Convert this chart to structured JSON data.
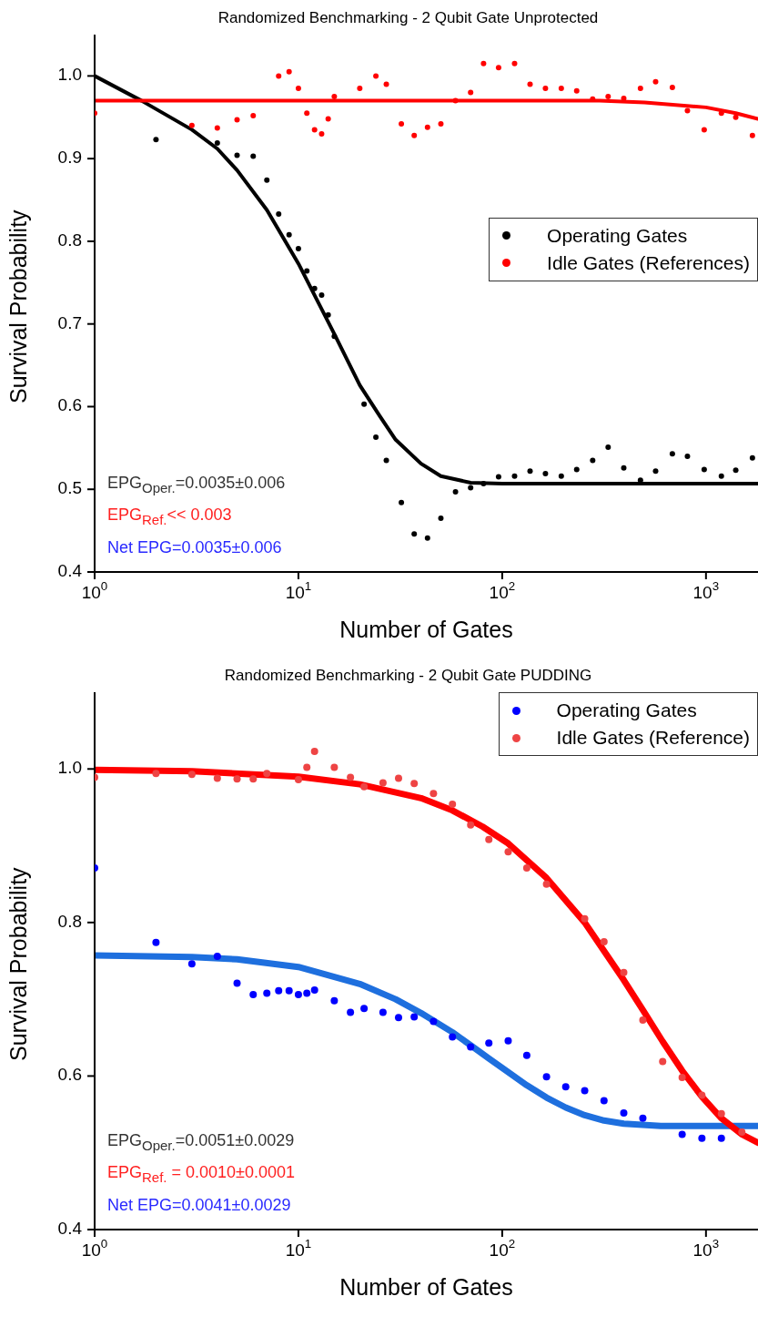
{
  "chart_data": [
    {
      "type": "scatter",
      "title": "Randomized Benchmarking - 2 Qubit Gate Unprotected",
      "xlabel": "Number of Gates",
      "ylabel": "Survival Probability",
      "log": "x",
      "marker": "circle",
      "legend": "right",
      "xlim": [
        1,
        1800
      ],
      "xticks": [
        {
          "value": 1,
          "label": "10$^{0}$"
        },
        {
          "value": 10,
          "label": "10$^{1}$"
        },
        {
          "value": 100,
          "label": "10$^{2}$"
        },
        {
          "value": 1000,
          "label": "10$^{3}$"
        }
      ],
      "ylim": [
        0.4,
        1.05
      ],
      "yticks": [
        0.4,
        0.5,
        0.6,
        0.7,
        0.8,
        0.9,
        {
          "value": 1,
          "label": "1.0"
        }
      ],
      "annotations": [
        "EPG$_{Oper.}$=0.0035±0.006",
        "EPG$_{Ref.}$<< 0.003",
        "Net EPG=0.0035±0.006"
      ],
      "series": [
        {
          "type": "line",
          "marker": "none",
          "color": "#000000",
          "x": [
            1,
            1.7,
            3,
            4,
            5,
            7,
            10,
            15,
            20,
            25,
            30,
            40,
            50,
            70,
            100,
            200,
            500,
            1000,
            1800
          ],
          "values": [
            1.0,
            0.97,
            0.935,
            0.912,
            0.886,
            0.838,
            0.773,
            0.688,
            0.626,
            0.589,
            0.56,
            0.531,
            0.516,
            0.508,
            0.507,
            0.507,
            0.507,
            0.507,
            0.507
          ]
        },
        {
          "type": "line",
          "marker": "none",
          "color": "#ff0000",
          "x": [
            1,
            10,
            100,
            300,
            500,
            1000,
            1400,
            1800
          ],
          "values": [
            0.97,
            0.97,
            0.97,
            0.97,
            0.968,
            0.962,
            0.955,
            0.948
          ]
        },
        {
          "name": "Operating Gates",
          "color": "#000000",
          "x": [
            2,
            4,
            5,
            6,
            7,
            8,
            9,
            10,
            11,
            12,
            13,
            14,
            15,
            21,
            24,
            27,
            32,
            37,
            43,
            50,
            59,
            70,
            81,
            96,
            115,
            137,
            163,
            195,
            232,
            278,
            331,
            395,
            477,
            566,
            684,
            811,
            980,
            1190,
            1400,
            1690
          ],
          "values": [
            0.923,
            0.919,
            0.904,
            0.903,
            0.874,
            0.833,
            0.808,
            0.791,
            0.764,
            0.743,
            0.735,
            0.711,
            0.685,
            0.603,
            0.563,
            0.535,
            0.484,
            0.446,
            0.441,
            0.465,
            0.497,
            0.502,
            0.507,
            0.515,
            0.516,
            0.522,
            0.519,
            0.516,
            0.524,
            0.535,
            0.551,
            0.526,
            0.511,
            0.522,
            0.543,
            0.54,
            0.524,
            0.516,
            0.523,
            0.538
          ]
        },
        {
          "name": "Idle Gates (References)",
          "color": "#ff0000",
          "x": [
            1,
            3,
            4,
            5,
            6,
            8,
            9,
            10,
            11,
            12,
            13,
            14,
            15,
            20,
            24,
            27,
            32,
            37,
            43,
            50,
            59,
            70,
            81,
            96,
            115,
            137,
            163,
            195,
            232,
            278,
            331,
            395,
            477,
            566,
            684,
            811,
            980,
            1190,
            1400,
            1690
          ],
          "values": [
            0.955,
            0.94,
            0.937,
            0.947,
            0.952,
            1.0,
            1.005,
            0.985,
            0.955,
            0.935,
            0.93,
            0.948,
            0.975,
            0.985,
            1.0,
            0.99,
            0.942,
            0.928,
            0.938,
            0.942,
            0.97,
            0.98,
            1.015,
            1.01,
            1.015,
            0.99,
            0.985,
            0.985,
            0.982,
            0.972,
            0.975,
            0.973,
            0.985,
            0.993,
            0.986,
            0.958,
            0.935,
            0.955,
            0.95,
            0.928
          ]
        }
      ]
    },
    {
      "type": "scatter",
      "title": "Randomized Benchmarking - 2 Qubit Gate PUDDING",
      "xlabel": "Number of Gates",
      "ylabel": "Survival Probability",
      "log": "x",
      "marker": "circle",
      "legend": "top right",
      "xlim": [
        1,
        1800
      ],
      "xticks": [
        {
          "value": 1,
          "label": "10$^{0}$"
        },
        {
          "value": 10,
          "label": "10$^{1}$"
        },
        {
          "value": 100,
          "label": "10$^{2}$"
        },
        {
          "value": 1000,
          "label": "10$^{3}$"
        }
      ],
      "ylim": [
        0.4,
        1.1
      ],
      "yticks": [
        0.4,
        0.6,
        0.8,
        {
          "value": 1,
          "label": "1.0"
        }
      ],
      "annotations": [
        "EPG$_{Oper.}$=0.0051±0.0029",
        "EPG$_{Ref.}$ = 0.0010±0.0001",
        "Net EPG=0.0041±0.0029"
      ],
      "series": [
        {
          "type": "line",
          "marker": "none",
          "color": "#1e6fde",
          "x": [
            1,
            3,
            5,
            10,
            20,
            30,
            40,
            57,
            70,
            86,
            107,
            132,
            165,
            205,
            254,
            316,
            395,
            600,
            1000,
            1800
          ],
          "values": [
            0.757,
            0.755,
            0.752,
            0.742,
            0.72,
            0.7,
            0.682,
            0.657,
            0.64,
            0.623,
            0.605,
            0.588,
            0.572,
            0.559,
            0.549,
            0.542,
            0.538,
            0.535,
            0.535,
            0.535
          ]
        },
        {
          "type": "line",
          "marker": "none",
          "color": "#ff0000",
          "x": [
            1,
            3,
            10,
            20,
            40,
            57,
            80,
            107,
            165,
            254,
            395,
            490,
            613,
            764,
            955,
            1190,
            1500,
            1800
          ],
          "values": [
            0.999,
            0.997,
            0.99,
            0.98,
            0.962,
            0.946,
            0.925,
            0.903,
            0.858,
            0.8,
            0.725,
            0.686,
            0.645,
            0.607,
            0.573,
            0.545,
            0.524,
            0.513
          ]
        },
        {
          "name": "Operating Gates",
          "color": "#0000ff",
          "x": [
            1,
            2,
            3,
            4,
            5,
            6,
            7,
            8,
            9,
            10,
            11,
            12,
            15,
            18,
            21,
            26,
            31,
            37,
            46,
            57,
            70,
            86,
            107,
            132,
            165,
            205,
            254,
            316,
            395,
            490,
            764,
            955,
            1190
          ],
          "values": [
            0.871,
            0.774,
            0.746,
            0.756,
            0.721,
            0.706,
            0.708,
            0.711,
            0.711,
            0.706,
            0.708,
            0.712,
            0.698,
            0.683,
            0.688,
            0.683,
            0.676,
            0.677,
            0.671,
            0.651,
            0.638,
            0.643,
            0.646,
            0.627,
            0.599,
            0.586,
            0.581,
            0.568,
            0.552,
            0.545,
            0.524,
            0.519,
            0.519
          ]
        },
        {
          "name": "Idle Gates (Reference)",
          "color": "#ee4444",
          "x": [
            1,
            2,
            3,
            4,
            5,
            6,
            7,
            10,
            11,
            12,
            15,
            18,
            21,
            26,
            31,
            37,
            46,
            57,
            70,
            86,
            107,
            132,
            165,
            254,
            316,
            395,
            490,
            613,
            764,
            955,
            1190,
            1500
          ],
          "values": [
            0.989,
            0.994,
            0.993,
            0.988,
            0.987,
            0.987,
            0.994,
            0.986,
            1.002,
            1.023,
            1.002,
            0.989,
            0.977,
            0.982,
            0.988,
            0.981,
            0.968,
            0.954,
            0.927,
            0.908,
            0.892,
            0.871,
            0.85,
            0.805,
            0.775,
            0.735,
            0.673,
            0.619,
            0.598,
            0.575,
            0.551,
            0.527
          ]
        }
      ]
    }
  ]
}
